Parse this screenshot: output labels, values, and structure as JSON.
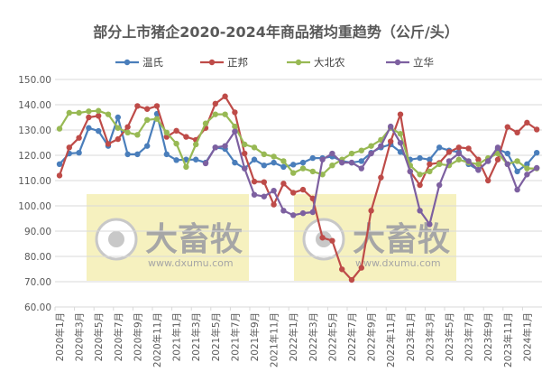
{
  "chart_data": {
    "type": "line",
    "title": "部分上市猪企2020-2024年商品猪均重趋势（公斤/头）",
    "xlabel": "",
    "ylabel": "",
    "ylim": [
      60,
      150
    ],
    "y_ticks": [
      "150.00",
      "140.00",
      "130.00",
      "120.00",
      "110.00",
      "100.00",
      "90.00",
      "80.00",
      "70.00",
      "60.00"
    ],
    "tick_labels": [
      "2020年1月",
      "2020年3月",
      "2020年5月",
      "2020年7月",
      "2020年9月",
      "2020年11月",
      "2021年1月",
      "2021年3月",
      "2021年5月",
      "2021年7月",
      "2021年9月",
      "2021年11月",
      "2022年1月",
      "2022年3月",
      "2022年5月",
      "2022年7月",
      "2022年9月",
      "2022年11月",
      "2023年1月",
      "2023年3月",
      "2023年5月",
      "2023年7月",
      "2023年9月",
      "2023年11月",
      "2024年1月"
    ],
    "x_range": [
      "2020年1月",
      "2024年2月"
    ],
    "grid": true,
    "legend_position": "top",
    "series": [
      {
        "name": "温氏",
        "color": "#4a7ebb",
        "values": [
          116.5,
          120.7,
          121,
          130.8,
          129.6,
          123.7,
          135,
          120.4,
          120.4,
          123.7,
          136.4,
          120.4,
          118.1,
          118.3,
          118.3,
          117.1,
          123.1,
          122.5,
          117.1,
          114.8,
          118.3,
          116,
          117.1,
          115.4,
          116.3,
          117.1,
          118.9,
          118.9,
          119.5,
          117.7,
          117.1,
          117.7,
          121,
          123.1,
          124.3,
          121.3,
          118.3,
          118.9,
          118.3,
          123.1,
          121.9,
          121.3,
          116.5,
          114.2,
          117.7,
          122.5,
          120.7,
          113.6,
          116.5,
          121
        ]
      },
      {
        "name": "正邦",
        "color": "#be4b48",
        "values": [
          112,
          123.1,
          126.9,
          135,
          135.6,
          124.5,
          126.4,
          131.2,
          139.5,
          138.3,
          139.5,
          127.3,
          129.7,
          127.3,
          126.1,
          130.8,
          140.4,
          143.3,
          137,
          120.7,
          109.6,
          109.4,
          100.5,
          108.8,
          105.2,
          106.4,
          102.9,
          87.4,
          86.2,
          74.9,
          70.7,
          75.5,
          98.1,
          111.2,
          125.5,
          136.2,
          113.6,
          108.2,
          116.5,
          117,
          121.3,
          123.1,
          122.7,
          118.3,
          110,
          118.3,
          131.2,
          129,
          132.9,
          130.2
        ]
      },
      {
        "name": "大北农",
        "color": "#98b954",
        "values": [
          130.5,
          136.8,
          136.8,
          137.4,
          137.6,
          136.2,
          130.8,
          129,
          128.1,
          134,
          134.4,
          129,
          124.6,
          115.4,
          124.3,
          132.6,
          136.2,
          136.2,
          131.4,
          124.3,
          123.1,
          120.4,
          119.5,
          117.7,
          113,
          114.8,
          113.6,
          112.4,
          116,
          118.3,
          120.7,
          121.9,
          123.7,
          126.1,
          130.8,
          128.5,
          116,
          112.4,
          113.6,
          116.5,
          116,
          118.3,
          117.1,
          116.5,
          118.9,
          120.7,
          116.5,
          117.7,
          114.8,
          114.8
        ]
      },
      {
        "name": "立华",
        "color": "#7d60a0",
        "values": [
          null,
          null,
          null,
          null,
          null,
          null,
          null,
          null,
          null,
          null,
          null,
          null,
          null,
          null,
          null,
          116.8,
          123.1,
          123.7,
          129.4,
          114.8,
          104.4,
          103.7,
          106,
          98.1,
          96.3,
          97.1,
          97.5,
          118.3,
          120.7,
          117.1,
          117.1,
          114.8,
          120.7,
          123.7,
          131.4,
          124.9,
          113.6,
          98.1,
          92.7,
          108.2,
          117.7,
          120.7,
          117.7,
          114.2,
          117.7,
          123.1,
          116.5,
          106.4,
          112.4,
          115
        ]
      }
    ]
  },
  "watermark": {
    "brand": "大畜牧",
    "url": "www.dxumu.com",
    "color": "#f5eeb4"
  }
}
